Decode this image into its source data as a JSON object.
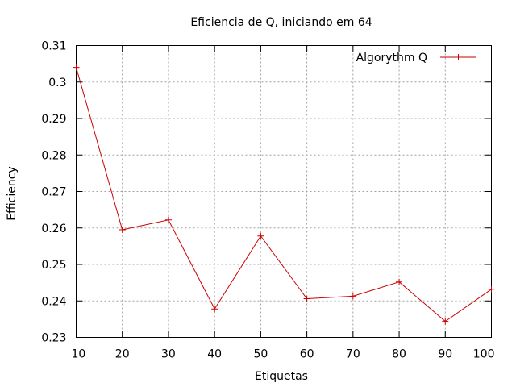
{
  "chart_data": {
    "type": "line",
    "title": "Eficiencia de Q, iniciando em 64",
    "xlabel": "Etiquetas",
    "ylabel": "Efficiency",
    "xlim": [
      10,
      100
    ],
    "ylim": [
      0.23,
      0.31
    ],
    "xticks": [
      10,
      20,
      30,
      40,
      50,
      60,
      70,
      80,
      90,
      100
    ],
    "yticks": [
      0.23,
      0.24,
      0.25,
      0.26,
      0.27,
      0.28,
      0.29,
      0.3,
      0.31
    ],
    "ytick_labels": [
      "0.23",
      "0.24",
      "0.25",
      "0.26",
      "0.27",
      "0.28",
      "0.29",
      "0.3",
      "0.31"
    ],
    "grid": true,
    "legend_position": "top-right",
    "series": [
      {
        "name": "Algorythm Q",
        "color": "#cc0000",
        "marker": "plus",
        "x": [
          10,
          20,
          30,
          40,
          50,
          60,
          70,
          80,
          90,
          100
        ],
        "y": [
          0.304,
          0.2595,
          0.2622,
          0.2378,
          0.2578,
          0.2406,
          0.2413,
          0.2452,
          0.2344,
          0.2432
        ]
      }
    ]
  }
}
